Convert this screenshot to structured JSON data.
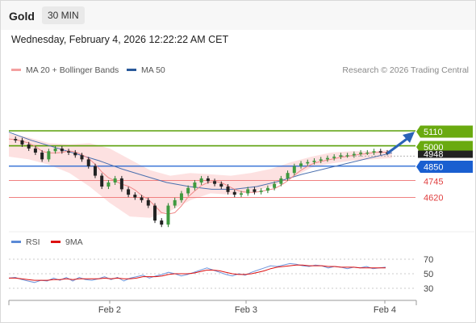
{
  "header": {
    "symbol": "Gold",
    "timeframe": "30 MIN",
    "datetime": "Wednesday, February 4, 2026 12:22:22 AM CET"
  },
  "legend": {
    "items": [
      {
        "label": "MA 20 + Bollinger Bands",
        "color": "#f4a0a0"
      },
      {
        "label": "MA 50",
        "color": "#2a5a9b"
      }
    ],
    "credit": "Research © 2026 Trading Central"
  },
  "rsi_legend": {
    "items": [
      {
        "label": "RSI",
        "color": "#5b8ad6"
      },
      {
        "label": "9MA",
        "color": "#dd1111"
      }
    ]
  },
  "price_levels": [
    {
      "label": "5110",
      "color": "#6aaa10",
      "text_color": "#ffffff",
      "style": "filled"
    },
    {
      "label": "5000",
      "color": "#6aaa10",
      "text_color": "#ffffff",
      "style": "filled"
    },
    {
      "label": "4948",
      "color": "#222222",
      "text_color": "#ffffff",
      "style": "filled"
    },
    {
      "label": "4850",
      "color": "#1a5fd0",
      "text_color": "#ffffff",
      "style": "filled"
    },
    {
      "label": "4745",
      "color": "#e04040",
      "text_color": "#e04040",
      "style": "text"
    },
    {
      "label": "4620",
      "color": "#e04040",
      "text_color": "#e04040",
      "style": "text"
    }
  ],
  "x_axis": {
    "labels": [
      "Feb 2",
      "Feb 3",
      "Feb 4"
    ]
  },
  "rsi_axis": {
    "labels": [
      "70",
      "50",
      "30"
    ]
  },
  "chart_data": {
    "type": "candlestick",
    "instrument": "Gold",
    "interval": "30 MIN",
    "y_range": [
      4300,
      5250
    ],
    "levels": {
      "resistance": [
        5110,
        5000
      ],
      "last_price": 4948,
      "pivot": 4850,
      "support": [
        4745,
        4620
      ]
    },
    "price_path": [
      5050,
      5040,
      5010,
      4980,
      4950,
      4900,
      4960,
      4980,
      4960,
      4950,
      4930,
      4900,
      4850,
      4780,
      4700,
      4730,
      4760,
      4680,
      4640,
      4620,
      4600,
      4560,
      4450,
      4420,
      4560,
      4600,
      4650,
      4690,
      4730,
      4760,
      4740,
      4720,
      4700,
      4660,
      4640,
      4650,
      4680,
      4660,
      4670,
      4690,
      4720,
      4760,
      4800,
      4850,
      4870,
      4880,
      4890,
      4900,
      4910,
      4920,
      4930,
      4930,
      4940,
      4950,
      4950,
      4960,
      4950,
      4948
    ],
    "ma50_path": [
      5100,
      5040,
      4990,
      4940,
      4890,
      4830,
      4780,
      4730,
      4700,
      4680,
      4680,
      4700,
      4740,
      4790,
      4830,
      4870,
      4910,
      4948
    ],
    "bollinger": {
      "upper": [
        5090,
        5060,
        5020,
        5010,
        5020,
        4980,
        4900,
        4820,
        4780,
        4800,
        4790,
        4780,
        4800,
        4830,
        4880,
        4920,
        4950,
        4960,
        4960,
        4970
      ],
      "lower": [
        4920,
        4900,
        4860,
        4800,
        4700,
        4580,
        4480,
        4470,
        4520,
        4600,
        4650,
        4640,
        4660,
        4700,
        4760,
        4840,
        4870,
        4890,
        4900,
        4910
      ]
    },
    "rsi": {
      "levels": [
        70,
        50,
        30
      ],
      "values": [
        44,
        45,
        42,
        40,
        38,
        41,
        40,
        44,
        41,
        45,
        40,
        45,
        42,
        41,
        43,
        46,
        42,
        45,
        40,
        44,
        46,
        48,
        44,
        47,
        49,
        52,
        50,
        47,
        49,
        52,
        55,
        58,
        55,
        52,
        49,
        47,
        50,
        48,
        52,
        55,
        58,
        61,
        60,
        62,
        64,
        63,
        61,
        60,
        62,
        61,
        58,
        60,
        59,
        57,
        59,
        58,
        60,
        57,
        58,
        59
      ],
      "ma9": [
        44,
        44,
        43,
        42,
        41,
        41,
        41,
        42,
        42,
        43,
        42,
        43,
        43,
        43,
        43,
        44,
        43,
        44,
        43,
        43,
        44,
        46,
        46,
        46,
        47,
        49,
        50,
        50,
        50,
        51,
        53,
        55,
        55,
        54,
        52,
        50,
        49,
        49,
        50,
        52,
        54,
        57,
        59,
        60,
        61,
        62,
        62,
        61,
        61,
        61,
        60,
        60,
        59,
        59,
        59,
        58,
        58,
        58,
        58,
        58
      ]
    }
  }
}
